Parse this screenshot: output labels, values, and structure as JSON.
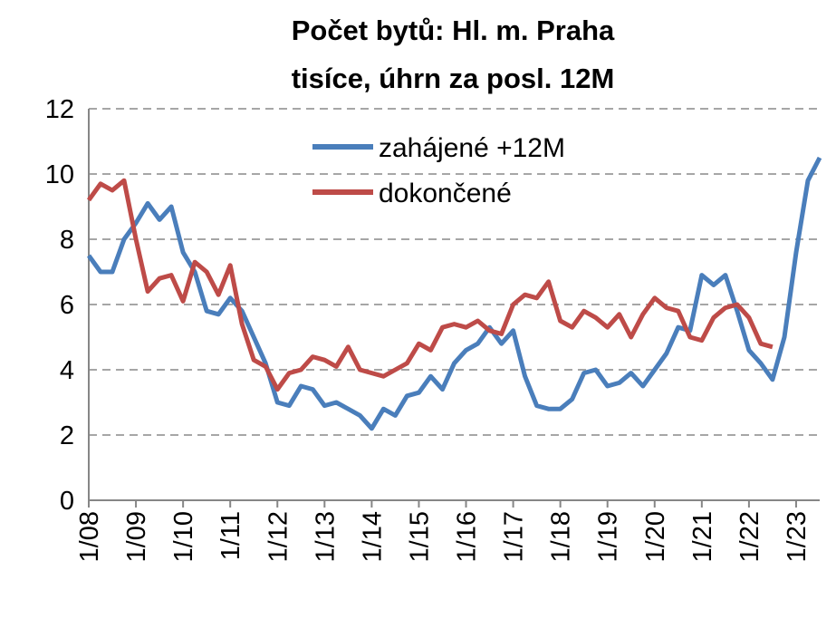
{
  "chart_data": {
    "type": "line",
    "title": [
      "Počet bytů: Hl. m. Praha",
      "tisíce, úhrn za posl. 12M"
    ],
    "x": [
      2008,
      2008.25,
      2008.5,
      2008.75,
      2009,
      2009.25,
      2009.5,
      2009.75,
      2010,
      2010.25,
      2010.5,
      2010.75,
      2011,
      2011.25,
      2011.5,
      2011.75,
      2012,
      2012.25,
      2012.5,
      2012.75,
      2013,
      2013.25,
      2013.5,
      2013.75,
      2014,
      2014.25,
      2014.5,
      2014.75,
      2015,
      2015.25,
      2015.5,
      2015.75,
      2016,
      2016.25,
      2016.5,
      2016.75,
      2017,
      2017.25,
      2017.5,
      2017.75,
      2018,
      2018.25,
      2018.5,
      2018.75,
      2019,
      2019.25,
      2019.5,
      2019.75,
      2020,
      2020.25,
      2020.5,
      2020.75,
      2021,
      2021.25,
      2021.5,
      2021.75,
      2022,
      2022.25,
      2022.5,
      2022.75,
      2023,
      2023.25,
      2023.5
    ],
    "series": [
      {
        "name": "zahájené +12M",
        "color": "#4a7ebb",
        "values": [
          7.5,
          7.0,
          7.0,
          8.0,
          8.5,
          9.1,
          8.6,
          9.0,
          7.6,
          7.0,
          5.8,
          5.7,
          6.2,
          5.8,
          5.0,
          4.2,
          3.0,
          2.9,
          3.5,
          3.4,
          2.9,
          3.0,
          2.8,
          2.6,
          2.2,
          2.8,
          2.6,
          3.2,
          3.3,
          3.8,
          3.4,
          4.2,
          4.6,
          4.8,
          5.3,
          4.8,
          5.2,
          3.8,
          2.9,
          2.8,
          2.8,
          3.1,
          3.9,
          4.0,
          3.5,
          3.6,
          3.9,
          3.5,
          4.0,
          4.5,
          5.3,
          5.2,
          6.9,
          6.6,
          6.9,
          5.8,
          4.6,
          4.2,
          3.7,
          5.0,
          7.6,
          9.8,
          10.5
        ]
      },
      {
        "name": "dokončené",
        "color": "#be4b48",
        "values": [
          9.2,
          9.7,
          9.5,
          9.8,
          8.0,
          6.4,
          6.8,
          6.9,
          6.1,
          7.3,
          7.0,
          6.3,
          7.2,
          5.4,
          4.3,
          4.1,
          3.4,
          3.9,
          4.0,
          4.4,
          4.3,
          4.1,
          4.7,
          4.0,
          3.9,
          3.8,
          4.0,
          4.2,
          4.8,
          4.6,
          5.3,
          5.4,
          5.3,
          5.5,
          5.2,
          5.1,
          6.0,
          6.3,
          6.2,
          6.7,
          5.5,
          5.3,
          5.8,
          5.6,
          5.3,
          5.7,
          5.0,
          5.7,
          6.2,
          5.9,
          5.8,
          5.0,
          4.9,
          5.6,
          5.9,
          6.0,
          5.6,
          4.8,
          4.7,
          null,
          null,
          null,
          null
        ]
      }
    ],
    "xlim": [
      2008,
      2023.5
    ],
    "xticks": [
      {
        "value": 2008,
        "label": "1/08"
      },
      {
        "value": 2009,
        "label": "1/09"
      },
      {
        "value": 2010,
        "label": "1/10"
      },
      {
        "value": 2011,
        "label": "1/11"
      },
      {
        "value": 2012,
        "label": "1/12"
      },
      {
        "value": 2013,
        "label": "1/13"
      },
      {
        "value": 2014,
        "label": "1/14"
      },
      {
        "value": 2015,
        "label": "1/15"
      },
      {
        "value": 2016,
        "label": "1/16"
      },
      {
        "value": 2017,
        "label": "1/17"
      },
      {
        "value": 2018,
        "label": "1/18"
      },
      {
        "value": 2019,
        "label": "1/19"
      },
      {
        "value": 2020,
        "label": "1/20"
      },
      {
        "value": 2021,
        "label": "1/21"
      },
      {
        "value": 2022,
        "label": "1/22"
      },
      {
        "value": 2023,
        "label": "1/23"
      }
    ],
    "ylim": [
      0,
      12
    ],
    "yticks": [
      0,
      2,
      4,
      6,
      8,
      10,
      12
    ],
    "grid": true,
    "legend": "top"
  }
}
